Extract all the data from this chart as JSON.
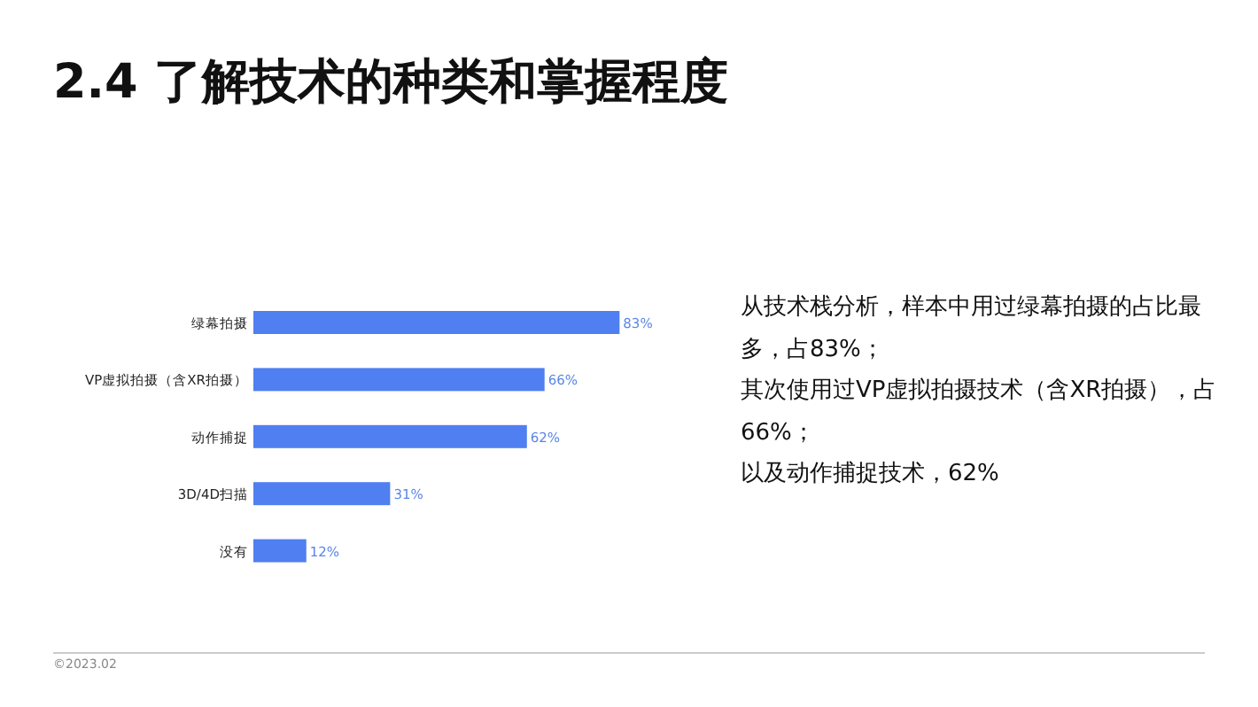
{
  "chart_data": {
    "type": "bar",
    "orientation": "horizontal",
    "title": "2.4 了解技术的种类和掌握程度",
    "categories": [
      "绿幕拍摄",
      "VP虚拟拍摄（含XR拍摄）",
      "动作捕捉",
      "3D/4D扫描",
      "没有"
    ],
    "values": [
      83,
      66,
      62,
      31,
      12
    ],
    "value_labels": [
      "83%",
      "66%",
      "62%",
      "31%",
      "12%"
    ],
    "color": "#4f7ff0",
    "annotations": [
      "从技术栈分析，样本中用过绿幕拍摄的占比最多，占83%；",
      "其次使用过VP虚拟拍摄技术（含XR拍摄），占66%；",
      "以及动作捕捉技术，62%",
      "©2023.02"
    ]
  }
}
